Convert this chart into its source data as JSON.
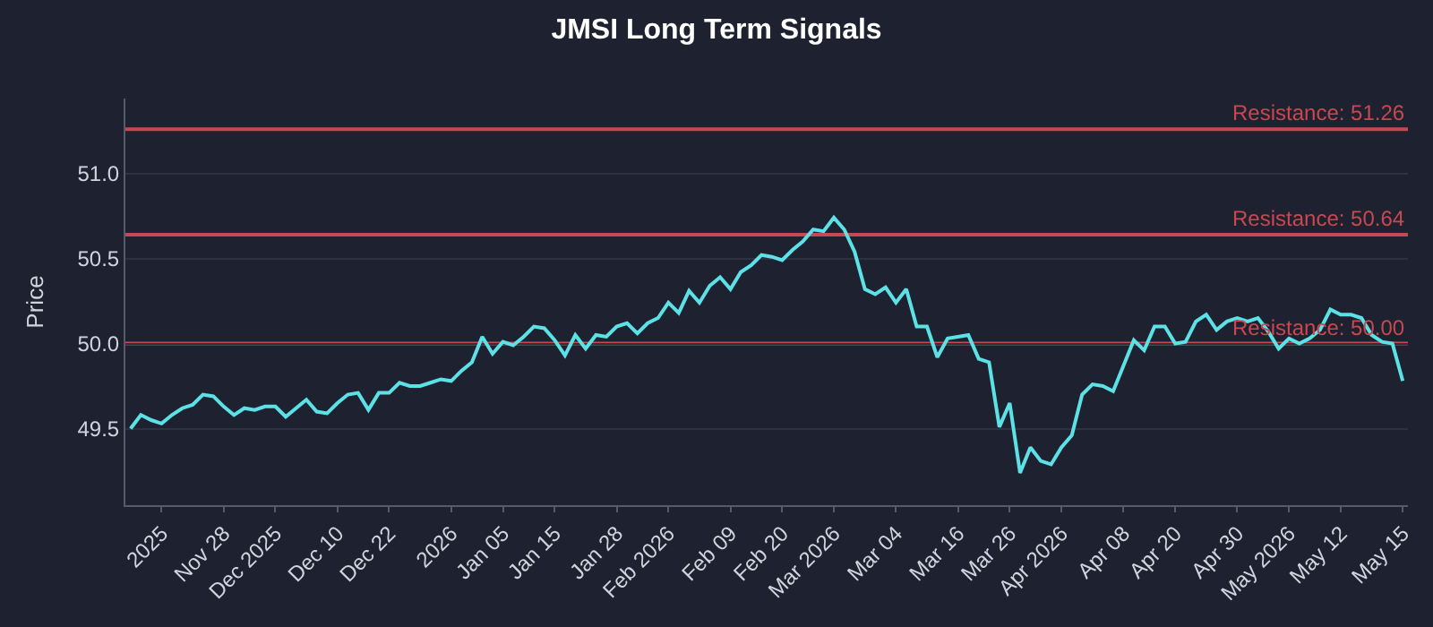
{
  "chart_data": {
    "type": "line",
    "title": "JMSI Long Term Signals",
    "ylabel": "Price",
    "categories": [
      null,
      null,
      null,
      "2025",
      null,
      null,
      null,
      null,
      null,
      "Nov 28",
      null,
      null,
      null,
      null,
      "Dec 2025",
      null,
      null,
      null,
      null,
      null,
      "Dec 10",
      null,
      null,
      null,
      null,
      "Dec 22",
      null,
      null,
      null,
      null,
      null,
      "2026",
      null,
      null,
      null,
      null,
      "Jan 05",
      null,
      null,
      null,
      null,
      "Jan 15",
      null,
      null,
      null,
      null,
      null,
      "Jan 28",
      null,
      null,
      null,
      null,
      "Feb 2026",
      null,
      null,
      null,
      null,
      null,
      "Feb 09",
      null,
      null,
      null,
      null,
      "Feb 20",
      null,
      null,
      null,
      null,
      "Mar 2026",
      null,
      null,
      null,
      null,
      null,
      "Mar 04",
      null,
      null,
      null,
      null,
      null,
      "Mar 16",
      null,
      null,
      null,
      null,
      "Mar 26",
      null,
      null,
      null,
      null,
      "Apr 2026",
      null,
      null,
      null,
      null,
      null,
      "Apr 08",
      null,
      null,
      null,
      null,
      "Apr 20",
      null,
      null,
      null,
      null,
      null,
      "Apr 30",
      null,
      null,
      null,
      null,
      "May 2026",
      null,
      null,
      null,
      null,
      "May 12",
      null,
      null,
      null,
      null,
      null,
      "May 15"
    ],
    "series": [
      {
        "color": "#5ce1e6",
        "values": [
          49.5,
          49.58,
          49.55,
          49.53,
          49.58,
          49.62,
          49.64,
          49.7,
          49.69,
          49.63,
          49.58,
          49.62,
          49.61,
          49.63,
          49.63,
          49.57,
          49.62,
          49.67,
          49.6,
          49.59,
          49.65,
          49.7,
          49.71,
          49.61,
          49.71,
          49.71,
          49.77,
          49.75,
          49.75,
          49.77,
          49.79,
          49.78,
          49.84,
          49.89,
          50.04,
          49.94,
          50.01,
          49.99,
          50.04,
          50.1,
          50.09,
          50.02,
          49.93,
          50.05,
          49.97,
          50.05,
          50.04,
          50.1,
          50.12,
          50.06,
          50.12,
          50.15,
          50.24,
          50.18,
          50.31,
          50.24,
          50.34,
          50.39,
          50.32,
          50.42,
          50.46,
          50.52,
          50.51,
          50.49,
          50.55,
          50.6,
          50.67,
          50.66,
          50.74,
          50.67,
          50.54,
          50.32,
          50.29,
          50.33,
          50.24,
          50.32,
          50.1,
          50.1,
          49.92,
          50.03,
          50.04,
          50.05,
          49.91,
          49.89,
          49.51,
          49.65,
          49.24,
          49.39,
          49.31,
          49.29,
          49.39,
          49.46,
          49.7,
          49.76,
          49.75,
          49.72,
          49.87,
          50.02,
          49.96,
          50.1,
          50.1,
          50.0,
          50.01,
          50.13,
          50.17,
          50.08,
          50.13,
          50.15,
          50.13,
          50.15,
          50.07,
          49.97,
          50.03,
          50.0,
          50.03,
          50.08,
          50.2,
          50.17,
          50.17,
          50.15,
          50.05,
          50.01,
          50.0,
          49.78
        ]
      }
    ],
    "ylim": [
      49.05,
      51.44
    ],
    "yticks": [
      {
        "value": 49.5,
        "label": "49.5"
      },
      {
        "value": 50.0,
        "label": "50.0"
      },
      {
        "value": 50.5,
        "label": "50.5"
      },
      {
        "value": 51.0,
        "label": "51.0"
      }
    ],
    "ref_lines": [
      {
        "axis": "y",
        "value": 51.26,
        "label": "Resistance: 51.26",
        "color": "#c9474f"
      },
      {
        "axis": "y",
        "value": 50.64,
        "label": "Resistance: 50.64",
        "color": "#c9474f"
      },
      {
        "axis": "y",
        "value": 50.0,
        "label": "Resistance: 50.00",
        "color": "#c9474f"
      }
    ],
    "grid": "y",
    "marker": "none",
    "line_style": "solid"
  }
}
